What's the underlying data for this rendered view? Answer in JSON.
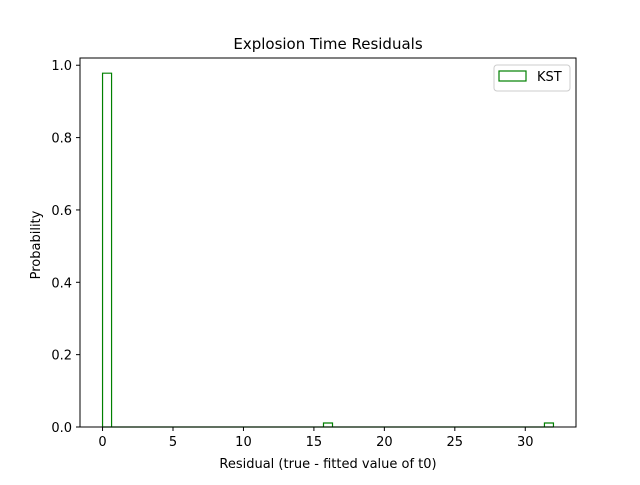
{
  "chart_data": {
    "type": "bar",
    "title": "Explosion Time Residuals",
    "xlabel": "Residual (true - fitted value of t0)",
    "ylabel": "Probability",
    "xlim": [
      -1.6,
      33.6
    ],
    "ylim": [
      0,
      1.02
    ],
    "xticks": [
      0,
      5,
      10,
      15,
      20,
      25,
      30
    ],
    "yticks": [
      0.0,
      0.2,
      0.4,
      0.6,
      0.8,
      1.0
    ],
    "xtick_labels": [
      "0",
      "5",
      "10",
      "15",
      "20",
      "25",
      "30"
    ],
    "ytick_labels": [
      "0.0",
      "0.2",
      "0.4",
      "0.6",
      "0.8",
      "1.0"
    ],
    "grid": false,
    "legend_position": "top-right",
    "histtype": "step",
    "series": [
      {
        "name": "KST",
        "color": "#008000",
        "bins": [
          {
            "x0": 0.0,
            "x1": 0.64,
            "value": 0.978
          },
          {
            "x0": 15.68,
            "x1": 16.32,
            "value": 0.011
          },
          {
            "x0": 31.36,
            "x1": 32.0,
            "value": 0.011
          }
        ]
      }
    ]
  }
}
